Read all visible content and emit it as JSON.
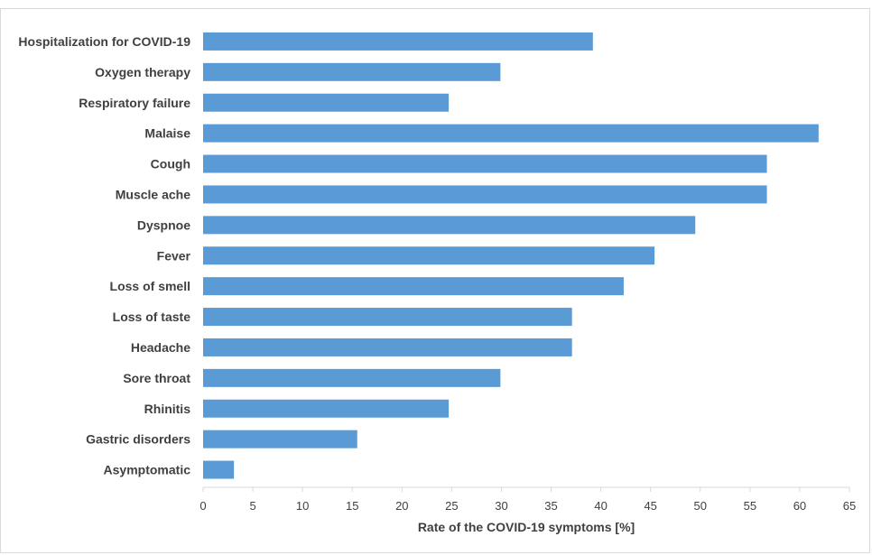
{
  "chart_data": {
    "type": "bar",
    "orientation": "horizontal",
    "categories": [
      "Hospitalization for COVID-19",
      "Oxygen therapy",
      "Respiratory failure",
      "Malaise",
      "Cough",
      "Muscle ache",
      "Dyspnoe",
      "Fever",
      "Loss of smell",
      "Loss of taste",
      "Headache",
      "Sore throat",
      "Rhinitis",
      "Gastric disorders",
      "Asymptomatic"
    ],
    "values": [
      39.2,
      29.9,
      24.7,
      61.9,
      56.7,
      56.7,
      49.5,
      45.4,
      42.3,
      37.1,
      37.1,
      29.9,
      24.7,
      15.5,
      3.1
    ],
    "xlabel": "Rate of the COVID-19 symptoms  [%]",
    "ylabel": "",
    "title": "",
    "xlim": [
      0,
      65
    ],
    "xticks": [
      "0",
      "5",
      "10",
      "15",
      "20",
      "25",
      "30",
      "35",
      "40",
      "45",
      "50",
      "55",
      "60",
      "65"
    ],
    "grid": false,
    "legend": "none",
    "colors": {
      "bar": "#5b9bd5",
      "axis": "#d9d9d9",
      "text": "#404040"
    }
  }
}
